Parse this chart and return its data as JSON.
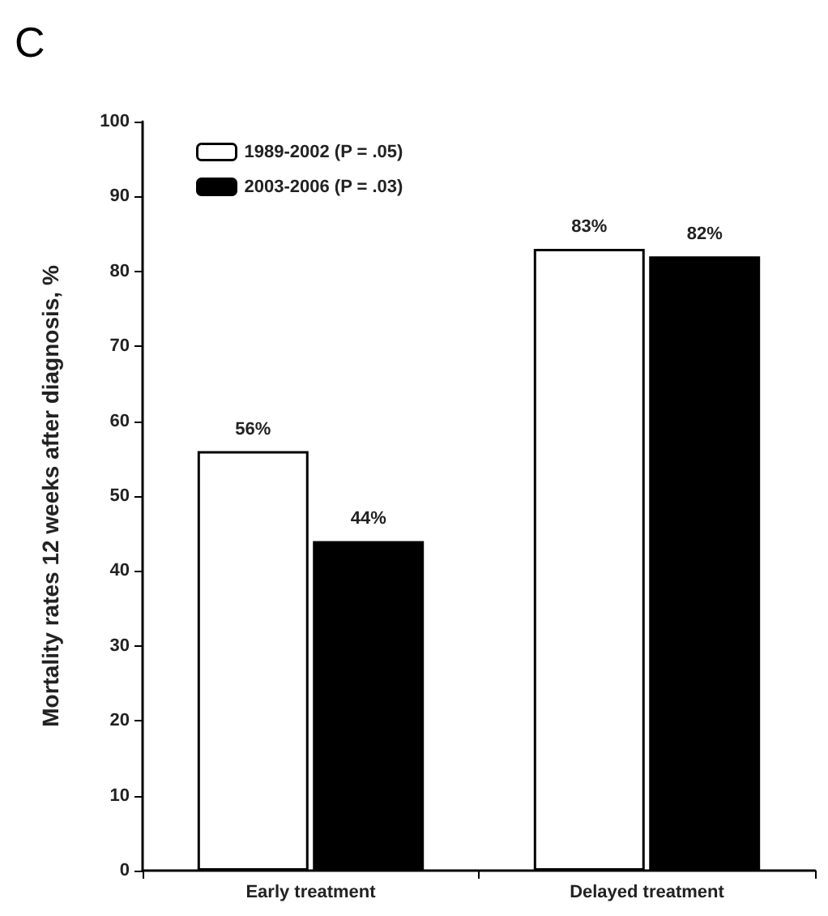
{
  "chart_data": {
    "type": "bar",
    "title": "C",
    "ylabel": "Mortality rates 12 weeks after diagnosis, %",
    "categories": [
      "Early treatment",
      "Delayed treatment"
    ],
    "series": [
      {
        "name": "1989-2002 (P = .05)",
        "color": "#ffffff",
        "values": [
          56,
          83
        ],
        "value_labels": [
          "56%",
          "83%"
        ]
      },
      {
        "name": "2003-2006 (P = .03)",
        "color": "#000000",
        "values": [
          44,
          82
        ],
        "value_labels": [
          "44%",
          "82%"
        ]
      }
    ],
    "ylim": [
      0,
      100
    ],
    "yticks": [
      0,
      10,
      20,
      30,
      40,
      50,
      60,
      70,
      80,
      90,
      100
    ],
    "grid": false,
    "legend": "top left"
  }
}
